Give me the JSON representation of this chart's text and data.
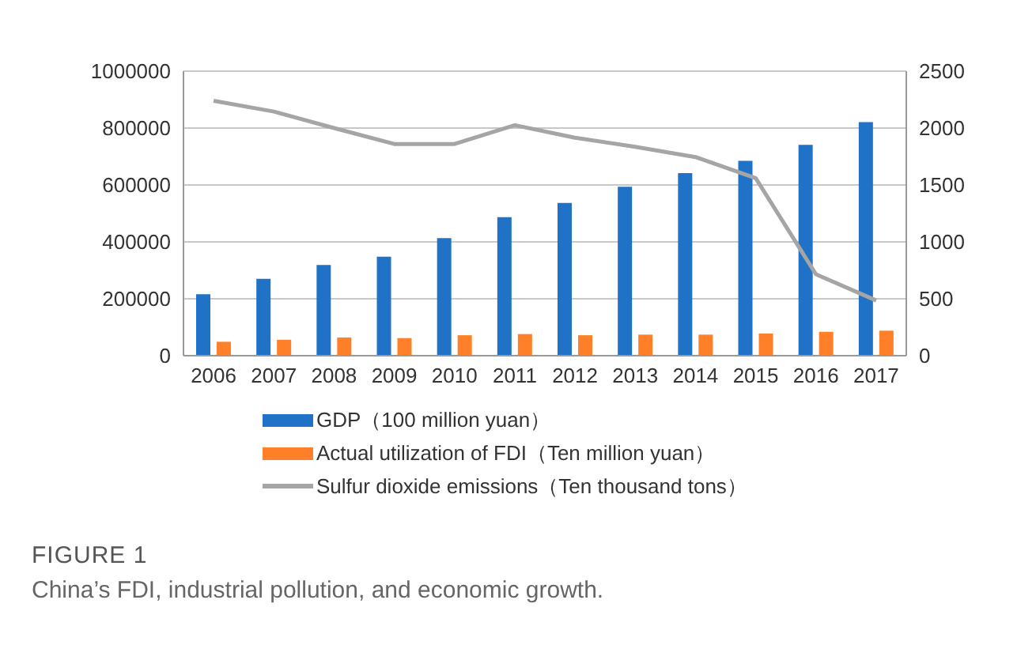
{
  "chart_data": {
    "type": "bar",
    "title": "FIGURE 1",
    "subtitle": "China’s FDI, industrial pollution, and economic growth.",
    "categories": [
      "2006",
      "2007",
      "2008",
      "2009",
      "2010",
      "2011",
      "2012",
      "2013",
      "2014",
      "2015",
      "2016",
      "2017"
    ],
    "series": [
      {
        "name": "GDP（100 million yuan）",
        "color": "#1f72c6",
        "values": [
          216000,
          270000,
          319000,
          348000,
          413000,
          487000,
          537000,
          594000,
          642000,
          685000,
          741000,
          821000
        ]
      },
      {
        "name": "Actual utilization of FDI（Ten million yuan）",
        "color": "#ff8028",
        "values": [
          49000,
          56000,
          64000,
          62000,
          72000,
          76000,
          72000,
          74000,
          74000,
          78000,
          84000,
          88000
        ]
      },
      {
        "name": "Sulfur dioxide emissions（Ten thousand tons）",
        "type": "line",
        "axis": "y2",
        "color": "#a5a5a5",
        "values": [
          2240,
          2145,
          2000,
          1860,
          1860,
          2025,
          1915,
          1835,
          1745,
          1560,
          715,
          485
        ]
      }
    ],
    "ylim": [
      0,
      1000000
    ],
    "yticks": [
      0,
      200000,
      400000,
      600000,
      800000,
      1000000
    ],
    "y2lim": [
      0,
      2500
    ],
    "y2ticks": [
      0,
      500,
      1000,
      1500,
      2000,
      2500
    ],
    "grid": "y",
    "legend": "bottom",
    "marker": "none"
  }
}
